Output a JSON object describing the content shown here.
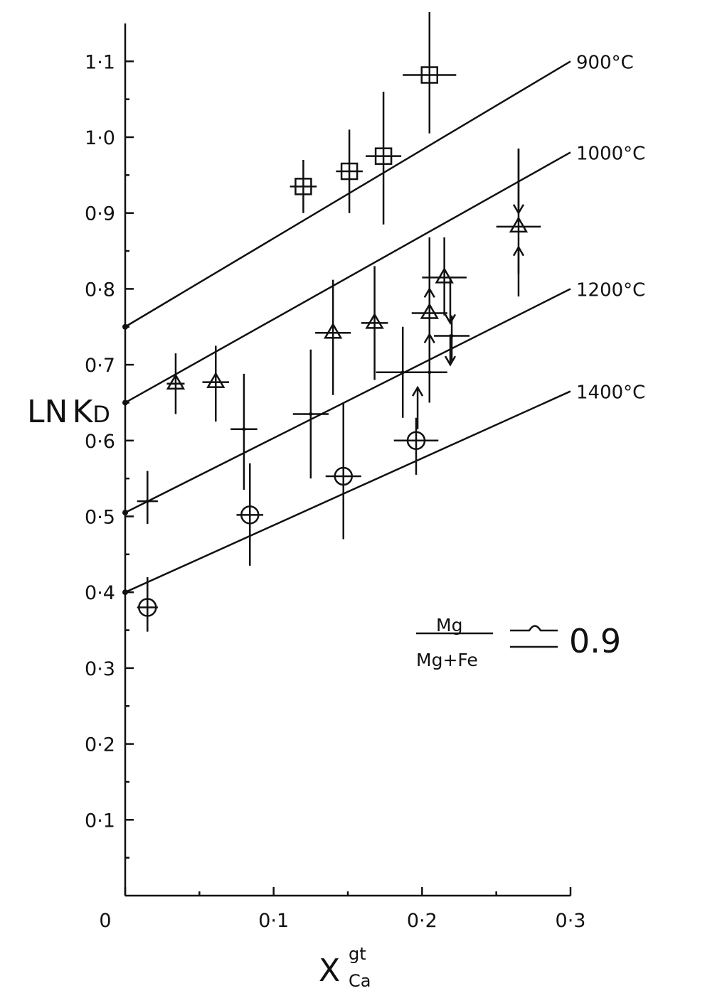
{
  "colors": {
    "ink": "#111111",
    "background": "#ffffff"
  },
  "chart_data": {
    "type": "scatter",
    "xlim": [
      0,
      0.3
    ],
    "ylim": [
      0,
      1.15
    ],
    "grid": false,
    "x_ticks": [
      {
        "v": 0,
        "label": "0"
      },
      {
        "v": 0.1,
        "label": "0·1"
      },
      {
        "v": 0.2,
        "label": "0·2"
      },
      {
        "v": 0.3,
        "label": "0·3"
      }
    ],
    "y_ticks": [
      {
        "v": 0.1,
        "label": "0·1"
      },
      {
        "v": 0.2,
        "label": "0·2"
      },
      {
        "v": 0.3,
        "label": "0·3"
      },
      {
        "v": 0.4,
        "label": "0·4"
      },
      {
        "v": 0.5,
        "label": "0·5"
      },
      {
        "v": 0.6,
        "label": "0·6"
      },
      {
        "v": 0.7,
        "label": "0·7"
      },
      {
        "v": 0.8,
        "label": "0·8"
      },
      {
        "v": 0.9,
        "label": "0·9"
      },
      {
        "v": 1.0,
        "label": "1·0"
      },
      {
        "v": 1.1,
        "label": "1·1"
      }
    ],
    "ylabel": {
      "main": "LN",
      "second": "K",
      "sub": "D"
    },
    "xlabel": {
      "main": "X",
      "sup": "gt",
      "sub": "Ca"
    },
    "isotherms": [
      {
        "label": "900°C",
        "x": [
          0,
          0.3
        ],
        "y": [
          0.75,
          1.1
        ]
      },
      {
        "label": "1000°C",
        "x": [
          0,
          0.3
        ],
        "y": [
          0.65,
          0.98
        ]
      },
      {
        "label": "1200°C",
        "x": [
          0,
          0.3
        ],
        "y": [
          0.505,
          0.8
        ]
      },
      {
        "label": "1400°C",
        "x": [
          0,
          0.3
        ],
        "y": [
          0.4,
          0.665
        ]
      }
    ],
    "points": [
      {
        "x": 0.12,
        "y": 0.935,
        "marker": "square",
        "xerr": 0.009,
        "ylow": 0.9,
        "yhigh": 0.97
      },
      {
        "x": 0.151,
        "y": 0.955,
        "marker": "square",
        "xerr": 0.009,
        "ylow": 0.9,
        "yhigh": 1.01
      },
      {
        "x": 0.174,
        "y": 0.975,
        "marker": "square",
        "xerr": 0.012,
        "ylow": 0.885,
        "yhigh": 1.06
      },
      {
        "x": 0.205,
        "y": 1.082,
        "marker": "square",
        "xerr": 0.018,
        "ylow": 1.005,
        "yhigh": 1.165
      },
      {
        "x": 0.034,
        "y": 0.675,
        "marker": "triangle",
        "xerr": 0.006,
        "ylow": 0.635,
        "yhigh": 0.715
      },
      {
        "x": 0.061,
        "y": 0.677,
        "marker": "triangle",
        "xerr": 0.009,
        "ylow": 0.625,
        "yhigh": 0.725
      },
      {
        "x": 0.14,
        "y": 0.742,
        "marker": "triangle",
        "xerr": 0.012,
        "ylow": 0.66,
        "yhigh": 0.812
      },
      {
        "x": 0.168,
        "y": 0.755,
        "marker": "triangle",
        "xerr": 0.009,
        "ylow": 0.68,
        "yhigh": 0.83
      },
      {
        "x": 0.205,
        "y": 0.768,
        "marker": "triangle",
        "xerr": 0.012,
        "ylow": 0.7,
        "yhigh": 0.868
      },
      {
        "x": 0.215,
        "y": 0.815,
        "marker": "triangle",
        "xerr": 0.015,
        "ylow": 0.765,
        "yhigh": 0.868
      },
      {
        "x": 0.265,
        "y": 0.882,
        "marker": "triangle",
        "xerr": 0.015,
        "ylow": 0.79,
        "yhigh": 0.985
      },
      {
        "x": 0.015,
        "y": 0.52,
        "marker": "plus",
        "xerr": 0.007,
        "ylow": 0.49,
        "yhigh": 0.56
      },
      {
        "x": 0.08,
        "y": 0.615,
        "marker": "plus",
        "xerr": 0.009,
        "ylow": 0.535,
        "yhigh": 0.688
      },
      {
        "x": 0.125,
        "y": 0.635,
        "marker": "plus",
        "xerr": 0.012,
        "ylow": 0.55,
        "yhigh": 0.72
      },
      {
        "x": 0.187,
        "y": 0.69,
        "marker": "plus",
        "xerr": 0.018,
        "ylow": 0.63,
        "yhigh": 0.75
      },
      {
        "x": 0.205,
        "y": 0.69,
        "marker": "plus",
        "xerr": 0.012,
        "ylow": 0.65,
        "yhigh": 0.72
      },
      {
        "x": 0.22,
        "y": 0.738,
        "marker": "plus",
        "xerr": 0.012,
        "ylow": 0.705,
        "yhigh": 0.765
      },
      {
        "x": 0.015,
        "y": 0.38,
        "marker": "circle",
        "xerr": 0.007,
        "ylow": 0.348,
        "yhigh": 0.42
      },
      {
        "x": 0.084,
        "y": 0.502,
        "marker": "circle",
        "xerr": 0.009,
        "ylow": 0.435,
        "yhigh": 0.57
      },
      {
        "x": 0.147,
        "y": 0.553,
        "marker": "circle",
        "xerr": 0.012,
        "ylow": 0.47,
        "yhigh": 0.65
      },
      {
        "x": 0.196,
        "y": 0.6,
        "marker": "circle",
        "xerr": 0.015,
        "ylow": 0.555,
        "yhigh": 0.63
      }
    ],
    "arrows": [
      {
        "x": 0.265,
        "y": [
          0.985,
          0.9
        ]
      },
      {
        "x": 0.265,
        "y": [
          0.82,
          0.855
        ]
      },
      {
        "x": 0.219,
        "y": [
          0.815,
          0.755
        ]
      },
      {
        "x": 0.219,
        "y": [
          0.74,
          0.7
        ]
      },
      {
        "x": 0.205,
        "y": [
          0.74,
          0.8
        ]
      },
      {
        "x": 0.205,
        "y": [
          0.705,
          0.74
        ]
      },
      {
        "x": 0.197,
        "y": [
          0.615,
          0.67
        ]
      }
    ],
    "legend": {
      "numerator": "Mg",
      "denominator": "Mg+Fe",
      "value": "0.9"
    }
  }
}
